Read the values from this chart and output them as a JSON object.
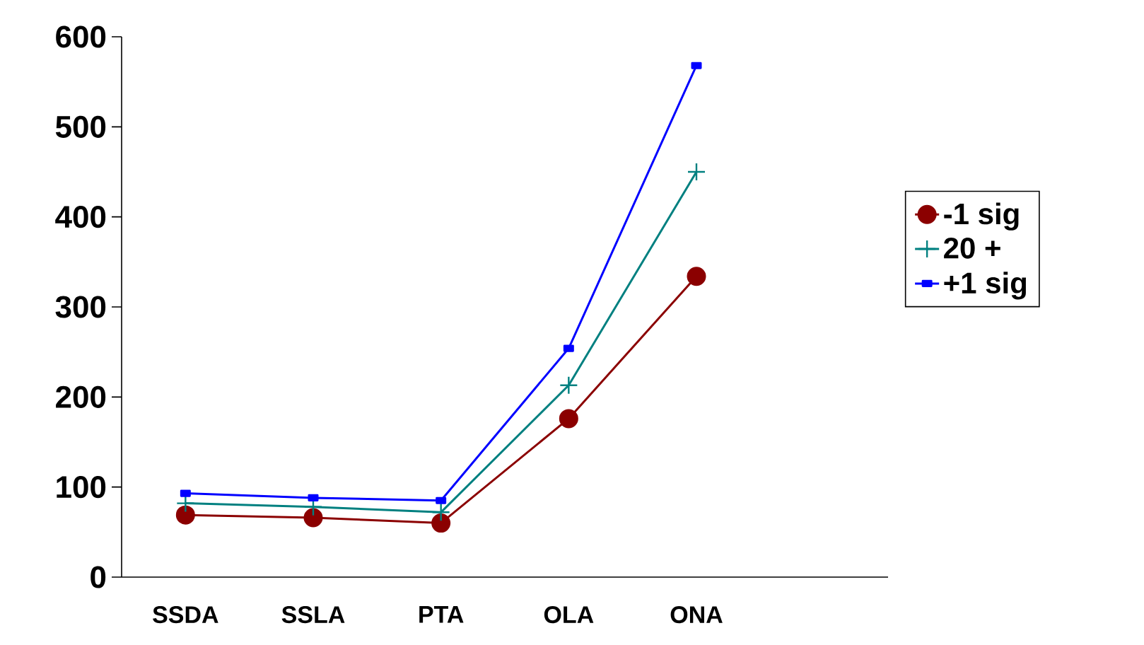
{
  "chart_data": {
    "type": "line",
    "categories": [
      "SSDA",
      "SSLA",
      "PTA",
      "OLA",
      "ONA",
      null
    ],
    "series": [
      {
        "name": "-1 sig",
        "color": "#8b0000",
        "marker": "circle",
        "values": [
          69,
          66,
          60,
          176,
          334,
          null
        ]
      },
      {
        "name": "20 +",
        "color": "#008080",
        "marker": "cross",
        "values": [
          82,
          78,
          72,
          213,
          450,
          null
        ]
      },
      {
        "name": "+1 sig",
        "color": "#0000ff",
        "marker": "square",
        "values": [
          93,
          88,
          85,
          254,
          568,
          null
        ]
      }
    ],
    "ylim": [
      0,
      600
    ],
    "yticks": [
      0,
      100,
      200,
      300,
      400,
      500,
      600
    ],
    "grid": false,
    "legend": "right"
  }
}
